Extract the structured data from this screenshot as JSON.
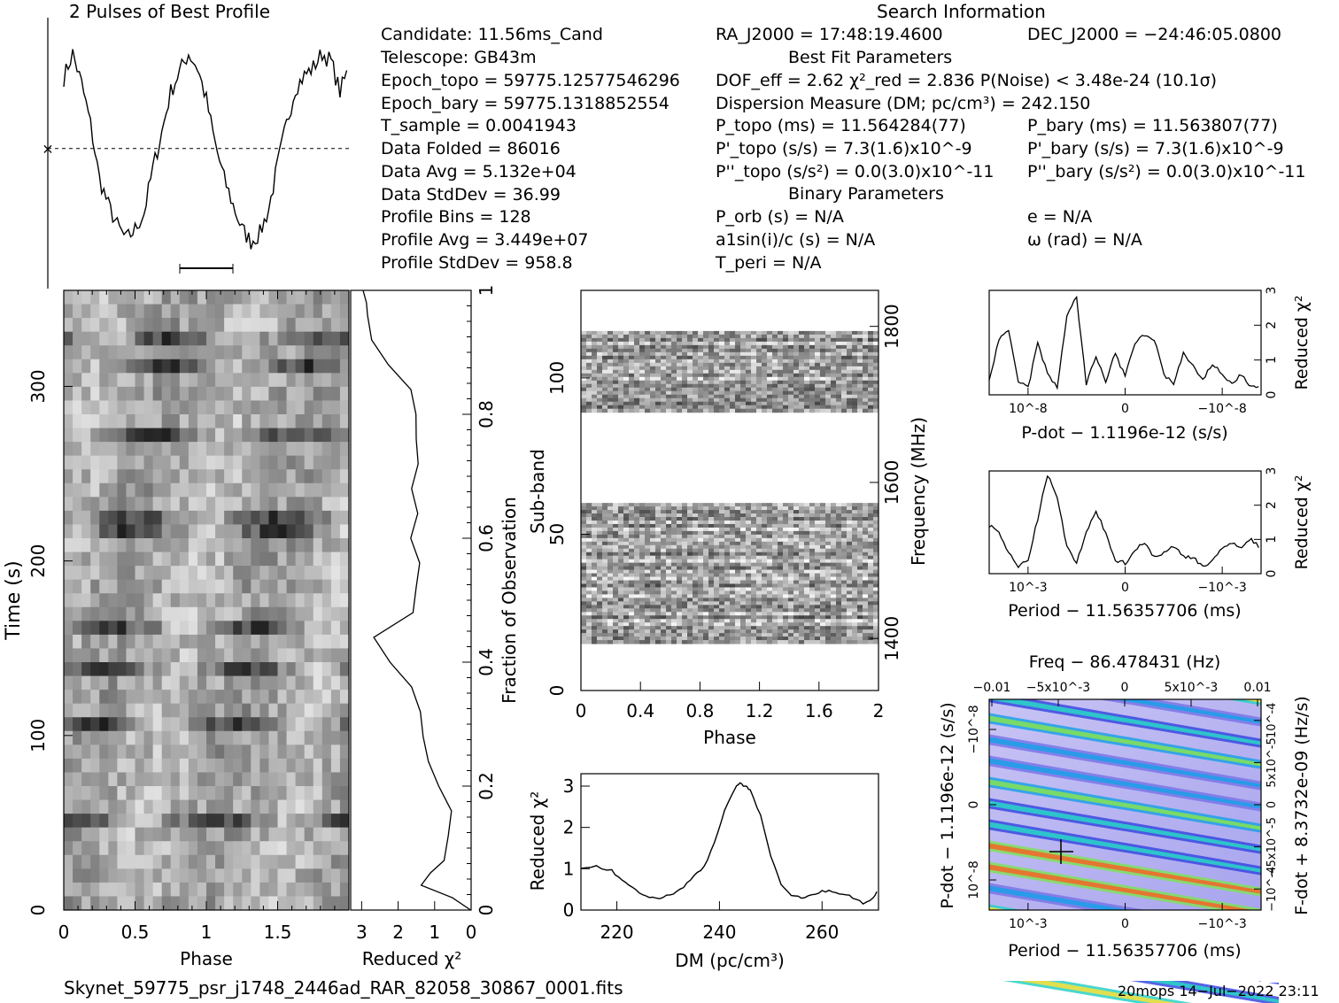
{
  "header": {
    "profile_title": "2 Pulses of Best Profile",
    "search_title": "Search Information",
    "best_fit_title": "Best Fit Parameters",
    "binary_title": "Binary Parameters"
  },
  "info_left": [
    "Candidate:  11.56ms_Cand",
    "Telescope:  GB43m",
    "Epoch_topo = 59775.12577546296",
    "Epoch_bary = 59775.1318852554",
    "T_sample        =  0.0041943",
    "Data Folded     =  86016",
    "Data Avg        =  5.132e+04",
    "Data StdDev     =  36.99",
    "Profile Bins    =  128",
    "Profile Avg     =  3.449e+07",
    "Profile StdDev  =  958.8"
  ],
  "info_mid": [
    "RA_J2000 = 17:48:19.4600",
    "DOF_eff = 2.62  χ²_red = 2.836  P(Noise) < 3.48e-24  (10.1σ)",
    "Dispersion Measure (DM; pc/cm³) = 242.150",
    "P_topo (ms) =  11.564284(77)",
    "P'_topo (s/s) =  7.3(1.6)x10^-9",
    "P''_topo (s/s²) = 0.0(3.0)x10^-11",
    "P_orb (s) = N/A",
    "a1sin(i)/c (s) = N/A",
    "T_peri = N/A"
  ],
  "info_right": [
    "DEC_J2000 = −24:46:05.0800",
    "P_bary (ms) =  11.563807(77)",
    "P'_bary (s/s) =  7.3(1.6)x10^-9",
    "P''_bary (s/s²) = 0.0(3.0)x10^-11",
    "e = N/A",
    "ω (rad) = N/A"
  ],
  "footer": {
    "filename": "Skynet_59775_psr_j1748_2446ad_RAR_82058_30867_0001.fits",
    "stamp": "20mops  14−Jul−2022 23:11"
  },
  "colors": {
    "ink": "#000000",
    "dm_heat_low": "#ffffff",
    "dm_heat_high": "#000000"
  },
  "chart_data": [
    {
      "type": "line",
      "id": "profile",
      "title": "2 Pulses of Best Profile",
      "x": [
        0,
        0.0625,
        0.125,
        0.1875,
        0.25,
        0.3125,
        0.375,
        0.4375,
        0.5,
        0.5625,
        0.625,
        0.6875,
        0.75,
        0.8125,
        0.875,
        0.9375,
        1.0,
        1.0625,
        1.125,
        1.1875,
        1.25,
        1.3125,
        1.375,
        1.4375,
        1.5,
        1.5625,
        1.625,
        1.6875,
        1.75,
        1.8125,
        1.875,
        1.9375,
        2.0
      ],
      "values": [
        0.85,
        0.97,
        0.82,
        0.62,
        0.35,
        0.22,
        0.12,
        0.05,
        0.1,
        0.18,
        0.4,
        0.58,
        0.78,
        0.88,
        0.97,
        0.9,
        0.74,
        0.52,
        0.35,
        0.22,
        0.1,
        0.04,
        0.08,
        0.2,
        0.42,
        0.62,
        0.8,
        0.86,
        0.9,
        0.97,
        0.93,
        0.78,
        0.9
      ],
      "ylim": [
        0,
        1.05
      ],
      "mean_line": 0.5
    },
    {
      "type": "line",
      "id": "time_chi2",
      "xlabel": "Reduced χ²",
      "x_ticks": [
        "3",
        "2",
        "1",
        "0"
      ],
      "xlim": [
        3.3,
        0
      ],
      "y_fraction": [
        0,
        0.02,
        0.04,
        0.06,
        0.08,
        0.12,
        0.16,
        0.2,
        0.24,
        0.28,
        0.32,
        0.36,
        0.4,
        0.44,
        0.48,
        0.52,
        0.56,
        0.6,
        0.64,
        0.68,
        0.72,
        0.76,
        0.8,
        0.84,
        0.88,
        0.92,
        0.96,
        0.98,
        1.0
      ],
      "values": [
        0.0,
        0.5,
        1.4,
        1.1,
        0.7,
        0.6,
        0.55,
        0.9,
        1.2,
        1.3,
        1.4,
        1.6,
        2.2,
        2.7,
        1.6,
        1.5,
        1.4,
        1.7,
        1.45,
        1.6,
        1.45,
        1.55,
        1.55,
        1.65,
        2.3,
        2.7,
        2.85,
        2.9,
        2.95
      ]
    },
    {
      "type": "heatmap",
      "id": "time_phase",
      "xlabel": "Phase",
      "ylabel": "Time (s)",
      "x_ticks": [
        "0",
        "0.5",
        "1",
        "1.5"
      ],
      "y_ticks": [
        "0",
        "100",
        "200",
        "300"
      ],
      "xlim": [
        0,
        2
      ],
      "ylim": [
        0,
        355
      ],
      "right_axis_label": "Fraction of Observation",
      "right_ticks": [
        "0",
        "0.2",
        "0.4",
        "0.6",
        "0.8",
        "1"
      ]
    },
    {
      "type": "heatmap",
      "id": "subband_phase",
      "xlabel": "Phase",
      "ylabel": "Sub-band",
      "x_ticks": [
        "0",
        "0.4",
        "0.8",
        "1.2",
        "1.6",
        "2"
      ],
      "y_ticks": [
        "0",
        "50",
        "100"
      ],
      "right_axis_label": "Frequency (MHz)",
      "right_ticks": [
        "1400",
        "1600",
        "1800"
      ],
      "bands": [
        [
          15,
          60
        ],
        [
          89,
          115
        ]
      ],
      "ylim": [
        0,
        128
      ]
    },
    {
      "type": "line",
      "id": "dm_chi2",
      "xlabel": "DM (pc/cm³)",
      "ylabel": "Reduced χ²",
      "x_ticks": [
        "220",
        "240",
        "260"
      ],
      "y_ticks": [
        "0",
        "1",
        "2",
        "3"
      ],
      "xlim": [
        213,
        271
      ],
      "ylim": [
        0,
        3.3
      ],
      "x": [
        213,
        216,
        219,
        221,
        223,
        225,
        227,
        229,
        231,
        233,
        235,
        237,
        239,
        241,
        243,
        244,
        245,
        246,
        248,
        250,
        252,
        254,
        256,
        258,
        260,
        262,
        264,
        266,
        268,
        270,
        271
      ],
      "values": [
        1.0,
        1.05,
        0.95,
        0.7,
        0.55,
        0.35,
        0.3,
        0.3,
        0.4,
        0.55,
        0.85,
        1.05,
        1.6,
        2.4,
        2.95,
        3.05,
        3.0,
        2.9,
        2.3,
        1.3,
        0.6,
        0.35,
        0.3,
        0.35,
        0.45,
        0.45,
        0.4,
        0.3,
        0.15,
        0.3,
        0.5
      ]
    },
    {
      "type": "line",
      "id": "pdot_chi2",
      "xlabel": "P-dot − 1.1196e-12 (s/s)",
      "ylabel": "Reduced χ²",
      "x_ticks": [
        "10^-8",
        "0",
        "−10^-8"
      ],
      "y_ticks": [
        "0",
        "1",
        "2",
        "3"
      ],
      "ylim": [
        0,
        3
      ],
      "x": [
        -1.4,
        -1.3,
        -1.2,
        -1.1,
        -1.0,
        -0.9,
        -0.8,
        -0.7,
        -0.6,
        -0.5,
        -0.4,
        -0.3,
        -0.2,
        -0.1,
        0,
        0.1,
        0.2,
        0.3,
        0.4,
        0.5,
        0.6,
        0.7,
        0.8,
        0.9,
        1.0,
        1.1,
        1.2,
        1.3,
        1.4
      ],
      "values": [
        0.4,
        1.6,
        1.8,
        0.4,
        0.2,
        1.5,
        0.6,
        0.2,
        2.3,
        2.8,
        0.3,
        1.1,
        0.4,
        1.2,
        0.5,
        1.5,
        1.7,
        1.6,
        0.6,
        0.3,
        1.2,
        0.8,
        0.4,
        0.9,
        0.6,
        0.3,
        0.6,
        0.2,
        0.3
      ]
    },
    {
      "type": "line",
      "id": "period_chi2",
      "xlabel": "Period − 11.56357706 (ms)",
      "ylabel": "Reduced χ²",
      "x_ticks": [
        "10^-3",
        "0",
        "−10^-3"
      ],
      "y_ticks": [
        "0",
        "1",
        "2",
        "3"
      ],
      "ylim": [
        0,
        3
      ],
      "x": [
        -1.4,
        -1.3,
        -1.2,
        -1.1,
        -1.0,
        -0.9,
        -0.8,
        -0.7,
        -0.6,
        -0.5,
        -0.4,
        -0.3,
        -0.2,
        -0.1,
        0,
        0.1,
        0.2,
        0.3,
        0.4,
        0.5,
        0.6,
        0.7,
        0.8,
        0.9,
        1.0,
        1.1,
        1.2,
        1.3,
        1.4
      ],
      "values": [
        1.4,
        1.2,
        0.6,
        0.2,
        0.4,
        1.6,
        2.9,
        2.2,
        0.8,
        0.3,
        1.2,
        1.8,
        1.2,
        0.4,
        0.3,
        0.7,
        0.9,
        0.5,
        0.6,
        0.8,
        0.5,
        0.5,
        0.2,
        0.4,
        0.7,
        0.9,
        0.8,
        1.0,
        0.7
      ]
    },
    {
      "type": "heatmap",
      "id": "pp_dot_plane",
      "xlabel": "Period − 11.56357706 (ms)",
      "ylabel": "P-dot − 1.1196e-12 (s/s)",
      "top_label": "Freq − 86.478431 (Hz)",
      "right_label": "F-dot + 8.3732e-09 (Hz/s)",
      "x_ticks": [
        "10^-3",
        "0",
        "−10^-3"
      ],
      "y_ticks": [
        "10^-8",
        "0",
        "−10^-8"
      ],
      "top_ticks": [
        "−0.01",
        "−5x10^-3",
        "0",
        "5x10^-3",
        "0.01"
      ],
      "right_ticks": [
        "−10^-4",
        "−5x10^-5",
        "0",
        "5x10^-5",
        "10^-4"
      ]
    }
  ]
}
